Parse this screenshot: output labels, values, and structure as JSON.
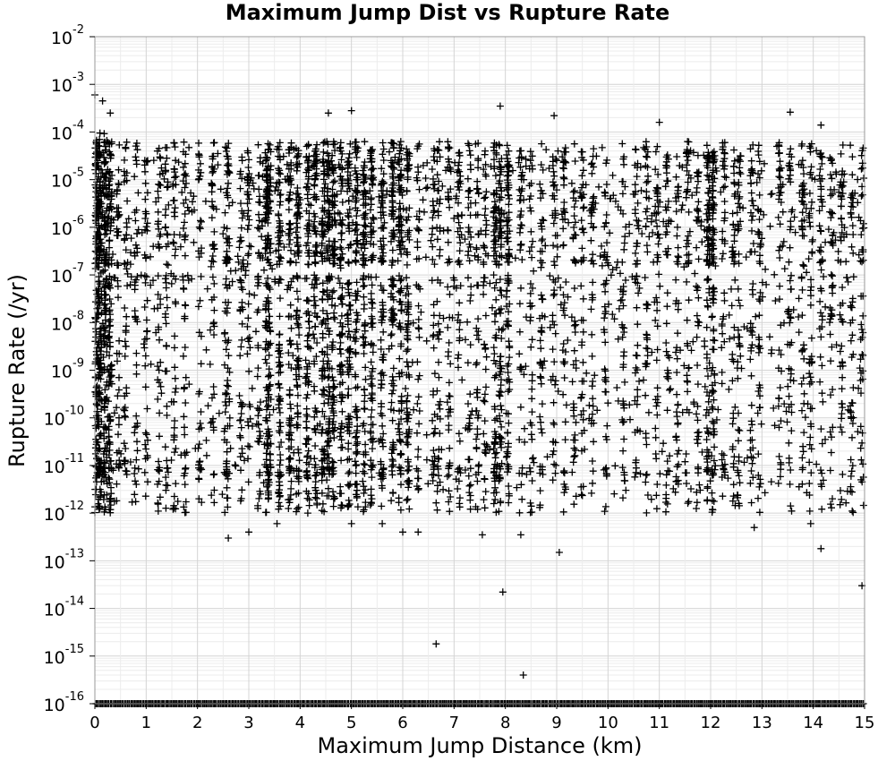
{
  "chart_data": {
    "type": "scatter",
    "title": "Maximum Jump Dist vs Rupture Rate",
    "xlabel": "Maximum Jump Distance (km)",
    "ylabel": "Rupture Rate (/yr)",
    "xlim": [
      0,
      15
    ],
    "ylim": [
      1e-16,
      0.01
    ],
    "y_scale": "log",
    "grid": true,
    "marker": "plus",
    "marker_color": "#000000",
    "x_ticks": [
      "0",
      "1",
      "2",
      "3",
      "4",
      "5",
      "6",
      "7",
      "8",
      "9",
      "10",
      "11",
      "12",
      "13",
      "14",
      "15"
    ],
    "y_ticks": [
      {
        "base": "10",
        "exp": "-2"
      },
      {
        "base": "10",
        "exp": "-3"
      },
      {
        "base": "10",
        "exp": "-4"
      },
      {
        "base": "10",
        "exp": "-5"
      },
      {
        "base": "10",
        "exp": "-6"
      },
      {
        "base": "10",
        "exp": "-7"
      },
      {
        "base": "10",
        "exp": "-8"
      },
      {
        "base": "10",
        "exp": "-9"
      },
      {
        "base": "10",
        "exp": "-10"
      },
      {
        "base": "10",
        "exp": "-11"
      },
      {
        "base": "10",
        "exp": "-12"
      },
      {
        "base": "10",
        "exp": "-13"
      },
      {
        "base": "10",
        "exp": "-14"
      },
      {
        "base": "10",
        "exp": "-15"
      },
      {
        "base": "10",
        "exp": "-16"
      }
    ],
    "column_x_positions": [
      0.0,
      0.05,
      0.1,
      0.2,
      0.3,
      0.45,
      0.6,
      0.8,
      1.0,
      1.25,
      1.4,
      1.55,
      1.75,
      2.05,
      2.3,
      2.55,
      2.6,
      2.85,
      3.0,
      3.2,
      3.35,
      3.4,
      3.6,
      3.8,
      3.95,
      4.15,
      4.3,
      4.45,
      4.55,
      4.65,
      4.8,
      4.95,
      5.1,
      5.25,
      5.4,
      5.6,
      5.8,
      5.95,
      6.1,
      6.3,
      6.6,
      6.7,
      6.9,
      7.1,
      7.3,
      7.45,
      7.6,
      7.8,
      7.9,
      8.05,
      8.3,
      8.5,
      8.7,
      8.95,
      9.15,
      9.35,
      9.5,
      9.7,
      9.95,
      10.3,
      10.55,
      10.75,
      10.95,
      11.15,
      11.35,
      11.55,
      11.75,
      11.95,
      12.05,
      12.25,
      12.45,
      12.55,
      12.8,
      12.95,
      13.35,
      13.55,
      13.8,
      13.95,
      14.15,
      14.35,
      14.55,
      14.75,
      14.95
    ],
    "outliers": [
      {
        "x": 0.0,
        "y": 0.0006
      },
      {
        "x": 0.15,
        "y": 0.00045
      },
      {
        "x": 0.3,
        "y": 0.00025
      },
      {
        "x": 4.55,
        "y": 0.00025
      },
      {
        "x": 5.0,
        "y": 0.00028
      },
      {
        "x": 7.9,
        "y": 0.00035
      },
      {
        "x": 8.95,
        "y": 0.00022
      },
      {
        "x": 11.0,
        "y": 0.00016
      },
      {
        "x": 13.55,
        "y": 0.00026
      },
      {
        "x": 14.15,
        "y": 0.00014
      },
      {
        "x": 2.6,
        "y": 3e-13
      },
      {
        "x": 3.0,
        "y": 4e-13
      },
      {
        "x": 3.55,
        "y": 6e-13
      },
      {
        "x": 5.0,
        "y": 6e-13
      },
      {
        "x": 5.6,
        "y": 6e-13
      },
      {
        "x": 6.0,
        "y": 4e-13
      },
      {
        "x": 6.3,
        "y": 4e-13
      },
      {
        "x": 7.55,
        "y": 3.5e-13
      },
      {
        "x": 8.3,
        "y": 3.5e-13
      },
      {
        "x": 9.05,
        "y": 1.5e-13
      },
      {
        "x": 12.85,
        "y": 5e-13
      },
      {
        "x": 13.95,
        "y": 6e-13
      },
      {
        "x": 14.15,
        "y": 1.8e-13
      },
      {
        "x": 7.95,
        "y": 2.2e-14
      },
      {
        "x": 14.95,
        "y": 3e-14
      },
      {
        "x": 6.65,
        "y": 1.8e-15
      },
      {
        "x": 8.35,
        "y": 4e-16
      }
    ],
    "floor_value": 1e-16,
    "floor_x_range": [
      0,
      15
    ]
  }
}
